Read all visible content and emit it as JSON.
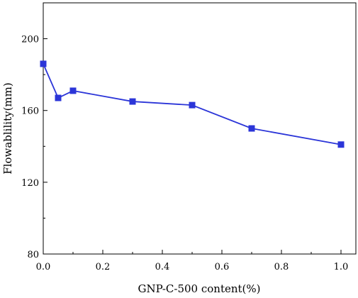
{
  "chart_data": {
    "type": "line",
    "xlabel": "GNP-C-500 content(%)",
    "ylabel": "Flowablility(mm)",
    "xlim": [
      0,
      1.05
    ],
    "ylim": [
      80,
      220
    ],
    "xticks": [
      0.0,
      0.2,
      0.4,
      0.6,
      0.8,
      1.0
    ],
    "xtick_labels": [
      "0.0",
      "0.2",
      "0.4",
      "0.6",
      "0.8",
      "1.0"
    ],
    "yticks": [
      80,
      120,
      160,
      200
    ],
    "ytick_labels": [
      "80",
      "120",
      "160",
      "200"
    ],
    "grid": false,
    "marker": "square",
    "series_color": "#2b35d8",
    "series": [
      {
        "x": [
          0.0,
          0.05,
          0.1,
          0.3,
          0.5,
          0.7,
          1.0
        ],
        "values": [
          186,
          167,
          171,
          165,
          163,
          150,
          141
        ]
      }
    ]
  }
}
